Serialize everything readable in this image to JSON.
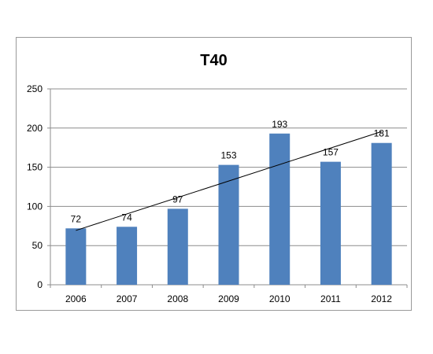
{
  "chart_data": {
    "type": "bar",
    "title": "T40",
    "categories": [
      "2006",
      "2007",
      "2008",
      "2009",
      "2010",
      "2011",
      "2012"
    ],
    "values": [
      72,
      74,
      97,
      153,
      193,
      157,
      181
    ],
    "ylim": [
      0,
      250
    ],
    "yticks": [
      0,
      50,
      100,
      150,
      200,
      250
    ],
    "grid": true,
    "trendline": {
      "type": "linear",
      "color": "#000000"
    },
    "bar_color": "#4f81bd",
    "legend": "none"
  }
}
